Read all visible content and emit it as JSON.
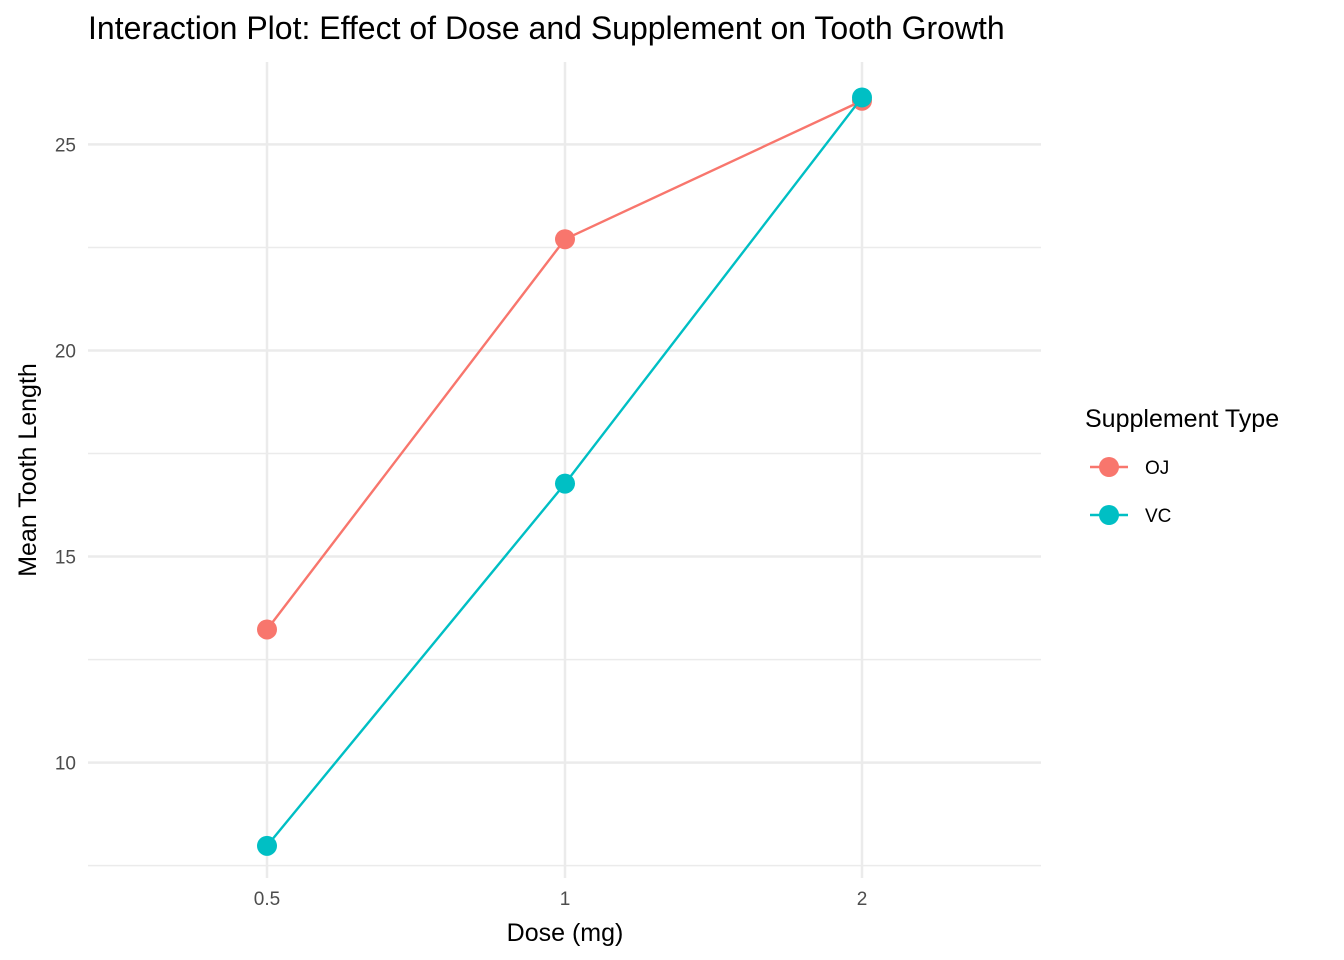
{
  "chart_data": {
    "type": "line",
    "title": "Interaction Plot: Effect of Dose and Supplement on Tooth Growth",
    "xlabel": "Dose (mg)",
    "ylabel": "Mean Tooth Length",
    "categories": [
      "0.5",
      "1",
      "2"
    ],
    "y_ticks": [
      10,
      15,
      20,
      25
    ],
    "ylim": [
      7.2,
      27.0
    ],
    "grid": true,
    "legend": {
      "title": "Supplement Type",
      "placement": "right"
    },
    "series": [
      {
        "name": "OJ",
        "color": "#F8766D",
        "values": [
          13.23,
          22.7,
          26.06
        ]
      },
      {
        "name": "VC",
        "color": "#00BFC4",
        "values": [
          7.98,
          16.77,
          26.14
        ]
      }
    ]
  }
}
